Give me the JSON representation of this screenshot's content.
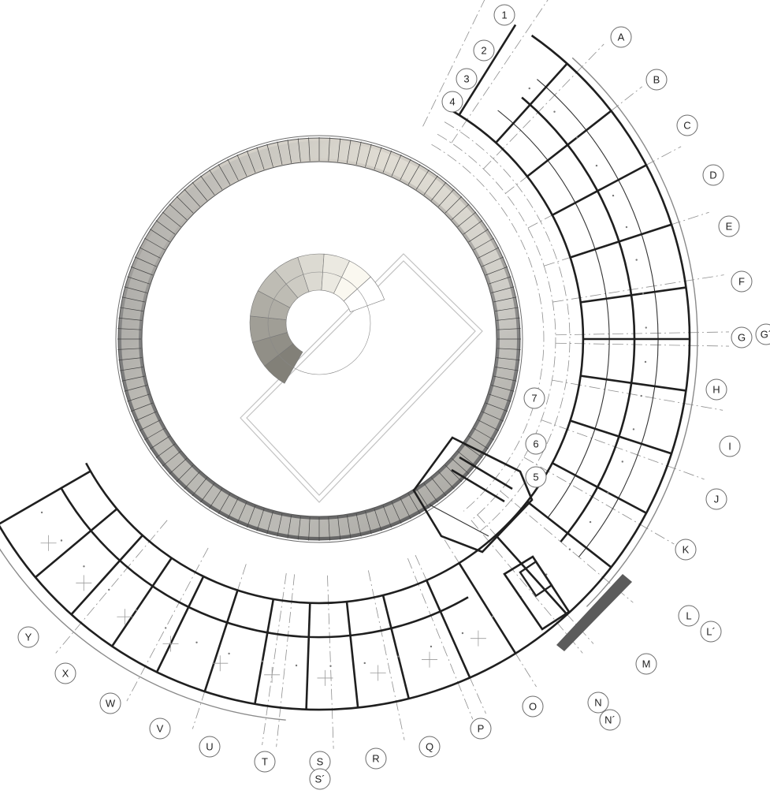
{
  "grid": {
    "radial_letters": [
      "A",
      "B",
      "C",
      "D",
      "E",
      "F",
      "G",
      "G´",
      "H",
      "I",
      "J",
      "K",
      "L",
      "L´",
      "M",
      "N",
      "N´",
      "O",
      "P",
      "Q",
      "R",
      "S",
      "S´",
      "T",
      "U",
      "V",
      "W",
      "X",
      "Y"
    ],
    "concentric_numbers": [
      "1",
      "2",
      "3",
      "4",
      "5",
      "6",
      "7"
    ]
  },
  "colors": {
    "wall": "#1f1f1f",
    "ramp_light": "#f2efe6",
    "ramp_dark": "#5a5a5a",
    "terrace": "#555555"
  }
}
